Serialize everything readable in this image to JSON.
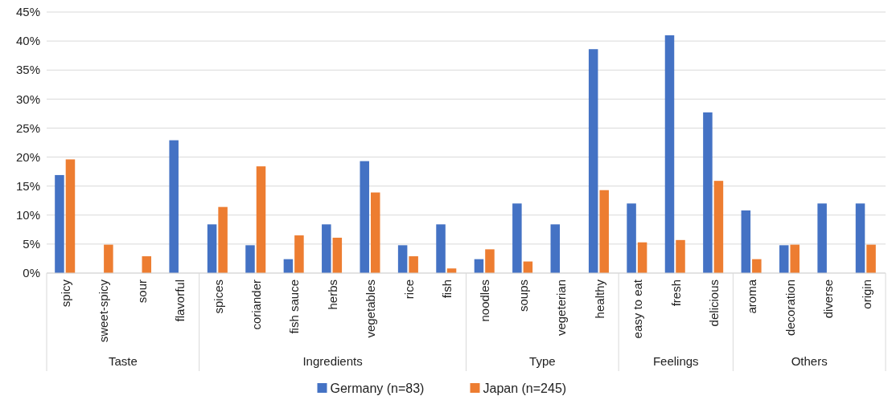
{
  "chart_data": {
    "type": "bar",
    "categories": [
      "spicy",
      "sweet-spicy",
      "sour",
      "flavorful",
      "spices",
      "coriander",
      "fish sauce",
      "herbs",
      "vegetables",
      "rice",
      "fish",
      "noodles",
      "soups",
      "vegeterian",
      "healthy",
      "easy to eat",
      "fresh",
      "delicious",
      "aroma",
      "decoration",
      "diverse",
      "origin"
    ],
    "series": [
      {
        "name": "Germany (n=83)",
        "color": "#4472c4",
        "values": [
          16.9,
          0,
          0,
          22.9,
          8.4,
          4.8,
          2.4,
          8.4,
          19.3,
          4.8,
          8.4,
          2.4,
          12.0,
          8.4,
          38.6,
          12.0,
          41.0,
          27.7,
          10.8,
          4.8,
          12.0,
          12.0
        ]
      },
      {
        "name": "Japan (n=245)",
        "color": "#ed7d31",
        "values": [
          19.6,
          4.9,
          2.9,
          0,
          11.4,
          18.4,
          6.5,
          6.1,
          13.9,
          2.9,
          0.8,
          4.1,
          2.0,
          0,
          14.3,
          5.3,
          5.7,
          15.9,
          2.4,
          4.9,
          0,
          4.9
        ]
      }
    ],
    "ylim": [
      0,
      45
    ],
    "yticks": [
      {
        "value": 0,
        "label": "0%"
      },
      {
        "value": 5,
        "label": "5%"
      },
      {
        "value": 10,
        "label": "10%"
      },
      {
        "value": 15,
        "label": "15%"
      },
      {
        "value": 20,
        "label": "20%"
      },
      {
        "value": 25,
        "label": "25%"
      },
      {
        "value": 30,
        "label": "30%"
      },
      {
        "value": 35,
        "label": "35%"
      },
      {
        "value": 40,
        "label": "40%"
      },
      {
        "value": 45,
        "label": "45%"
      }
    ],
    "annotations": [
      "Taste",
      "Ingredients",
      "Type",
      "Feelings",
      "Others"
    ],
    "grid": "y",
    "legend": "bottom"
  }
}
